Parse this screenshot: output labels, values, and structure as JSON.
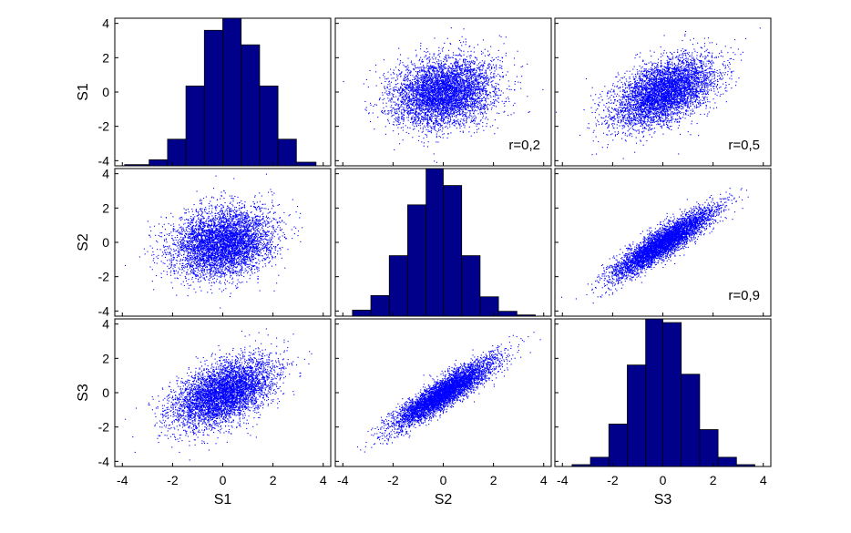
{
  "chart_data": {
    "type": "scatter-matrix",
    "title": "",
    "variables": [
      "S1",
      "S2",
      "S3"
    ],
    "tick_labels": [
      "-4",
      "-2",
      "0",
      "2",
      "4"
    ],
    "xlim": [
      -4.3,
      4.3
    ],
    "ylim": [
      -4.3,
      4.3
    ],
    "grid": false,
    "colors": {
      "scatter": "#0000ff",
      "bar_fill": "#00008b",
      "bar_edge": "#000000"
    },
    "sample_size_per_scatter": 5000,
    "correlations": [
      {
        "row": "S1",
        "col": "S2",
        "r": 0.2,
        "label": "r=0,2"
      },
      {
        "row": "S1",
        "col": "S3",
        "r": 0.5,
        "label": "r=0,5"
      },
      {
        "row": "S2",
        "col": "S3",
        "r": 0.9,
        "label": "r=0,9"
      }
    ],
    "histograms": [
      {
        "variable": "S1",
        "bin_edges": [
          -4.0,
          -3.0,
          -2.25,
          -1.5,
          -0.75,
          0.0,
          0.75,
          1.5,
          2.25,
          3.0,
          3.8
        ],
        "counts": [
          5,
          25,
          110,
          330,
          560,
          610,
          500,
          330,
          110,
          15
        ]
      },
      {
        "variable": "S2",
        "bin_edges": [
          -3.7,
          -2.95,
          -2.2,
          -1.45,
          -0.7,
          0.0,
          0.75,
          1.5,
          2.25,
          3.0,
          3.75
        ],
        "counts": [
          25,
          85,
          250,
          460,
          610,
          540,
          250,
          80,
          20,
          5
        ]
      },
      {
        "variable": "S3",
        "bin_edges": [
          -3.7,
          -2.95,
          -2.2,
          -1.45,
          -0.7,
          0.0,
          0.75,
          1.5,
          2.25,
          3.0,
          3.75
        ],
        "counts": [
          10,
          50,
          230,
          550,
          800,
          780,
          500,
          200,
          50,
          10
        ]
      }
    ]
  }
}
